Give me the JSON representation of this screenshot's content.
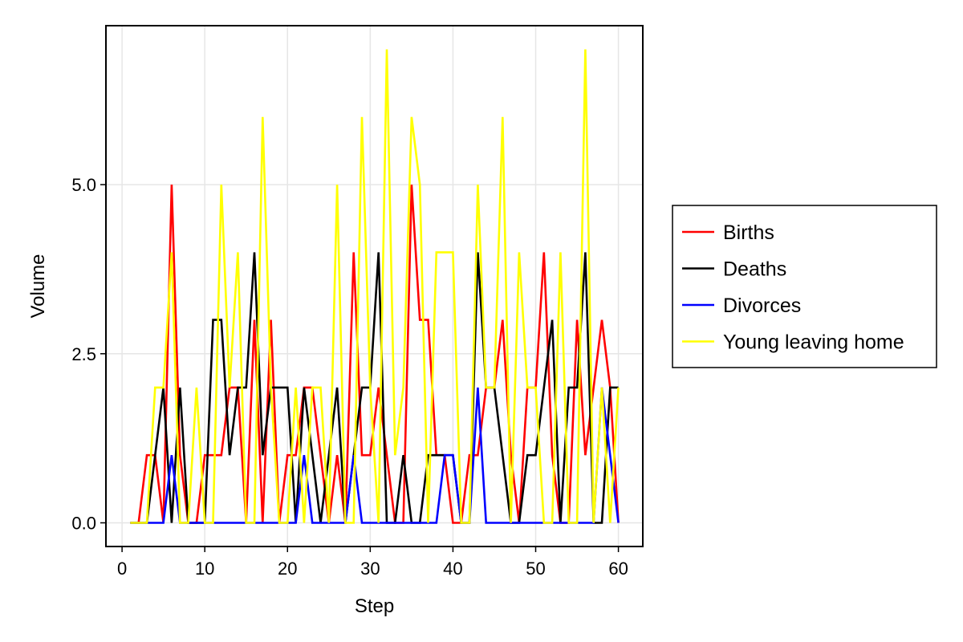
{
  "chart_data": {
    "type": "line",
    "title": "",
    "xlabel": "Step",
    "ylabel": "Volume",
    "xlim": [
      -1.95,
      62.95
    ],
    "ylim": [
      -0.35,
      7.35
    ],
    "xticks": [
      0,
      10,
      20,
      30,
      40,
      50,
      60
    ],
    "xtick_labels": [
      "0",
      "10",
      "20",
      "30",
      "40",
      "50",
      "60"
    ],
    "yticks": [
      0,
      2.5,
      5
    ],
    "ytick_labels": [
      "0.0",
      "2.5",
      "5.0"
    ],
    "grid": true,
    "legend_position": "right",
    "x": [
      1,
      2,
      3,
      4,
      5,
      6,
      7,
      8,
      9,
      10,
      11,
      12,
      13,
      14,
      15,
      16,
      17,
      18,
      19,
      20,
      21,
      22,
      23,
      24,
      25,
      26,
      27,
      28,
      29,
      30,
      31,
      32,
      33,
      34,
      35,
      36,
      37,
      38,
      39,
      40,
      41,
      42,
      43,
      44,
      45,
      46,
      47,
      48,
      49,
      50,
      51,
      52,
      53,
      54,
      55,
      56,
      57,
      58,
      59,
      60
    ],
    "series": [
      {
        "name": "Births",
        "color": "#ff0000",
        "values": [
          0,
          0,
          1,
          1,
          0,
          5,
          1,
          0,
          0,
          1,
          1,
          1,
          2,
          2,
          0,
          3,
          0,
          3,
          0,
          1,
          1,
          2,
          2,
          1,
          0,
          1,
          0,
          4,
          1,
          1,
          2,
          1,
          0,
          0,
          5,
          3,
          3,
          1,
          1,
          0,
          0,
          1,
          1,
          2,
          2,
          3,
          1,
          0,
          2,
          2,
          4,
          1,
          0,
          0,
          3,
          1,
          2,
          3,
          2,
          0
        ]
      },
      {
        "name": "Deaths",
        "color": "#000000",
        "values": [
          0,
          0,
          0,
          1,
          2,
          0,
          2,
          0,
          0,
          0,
          3,
          3,
          1,
          2,
          2,
          4,
          1,
          2,
          2,
          2,
          0,
          2,
          1,
          0,
          1,
          2,
          0,
          1,
          2,
          2,
          4,
          0,
          0,
          1,
          0,
          0,
          1,
          1,
          1,
          1,
          0,
          0,
          4,
          2,
          2,
          1,
          0,
          0,
          1,
          1,
          2,
          3,
          0,
          2,
          2,
          4,
          0,
          0,
          2,
          2
        ]
      },
      {
        "name": "Divorces",
        "color": "#0000ff",
        "values": [
          0,
          0,
          0,
          0,
          0,
          1,
          0,
          0,
          0,
          0,
          0,
          0,
          0,
          0,
          0,
          0,
          0,
          0,
          0,
          0,
          0,
          1,
          0,
          0,
          0,
          0,
          0,
          1,
          0,
          0,
          0,
          0,
          0,
          0,
          0,
          0,
          0,
          0,
          1,
          1,
          0,
          0,
          2,
          0,
          0,
          0,
          0,
          0,
          0,
          0,
          0,
          0,
          0,
          0,
          0,
          0,
          0,
          2,
          1,
          0
        ]
      },
      {
        "name": "Young leaving home",
        "color": "#ffff00",
        "values": [
          0,
          0,
          0,
          2,
          2,
          4,
          0,
          0,
          2,
          0,
          0,
          5,
          2,
          4,
          0,
          0,
          6,
          2,
          0,
          0,
          2,
          0,
          2,
          2,
          0,
          5,
          0,
          0,
          6,
          2,
          0,
          7,
          1,
          2,
          6,
          5,
          0,
          4,
          4,
          4,
          0,
          0,
          5,
          2,
          2,
          6,
          0,
          4,
          2,
          2,
          0,
          0,
          4,
          0,
          0,
          7,
          0,
          2,
          0,
          2
        ]
      }
    ]
  }
}
